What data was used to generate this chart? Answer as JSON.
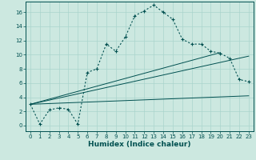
{
  "xlabel": "Humidex (Indice chaleur)",
  "background_color": "#cce8e0",
  "line_color": "#005050",
  "x_ticks": [
    0,
    1,
    2,
    3,
    4,
    5,
    6,
    7,
    8,
    9,
    10,
    11,
    12,
    13,
    14,
    15,
    16,
    17,
    18,
    19,
    20,
    21,
    22,
    23
  ],
  "y_ticks": [
    0,
    2,
    4,
    6,
    8,
    10,
    12,
    14,
    16
  ],
  "ylim": [
    -0.8,
    17.5
  ],
  "xlim": [
    -0.5,
    23.5
  ],
  "main_series_x": [
    0,
    1,
    2,
    3,
    4,
    5,
    6,
    7,
    8,
    9,
    10,
    11,
    12,
    13,
    14,
    15,
    16,
    17,
    18,
    19,
    20,
    21,
    22,
    23
  ],
  "main_series_y": [
    3.0,
    0.2,
    2.2,
    2.5,
    2.3,
    0.2,
    7.5,
    8.0,
    11.5,
    10.5,
    12.5,
    15.5,
    16.2,
    17.0,
    16.0,
    15.0,
    12.2,
    11.5,
    11.5,
    10.5,
    10.2,
    9.5,
    6.5,
    6.2
  ],
  "ref_line1_x": [
    0,
    23
  ],
  "ref_line1_y": [
    3.0,
    4.2
  ],
  "ref_line2_x": [
    0,
    23
  ],
  "ref_line2_y": [
    3.0,
    9.8
  ],
  "ref_line3_x": [
    0,
    20
  ],
  "ref_line3_y": [
    3.0,
    10.3
  ],
  "grid_color": "#aad4cc",
  "tick_fontsize": 5.0,
  "xlabel_fontsize": 6.5
}
